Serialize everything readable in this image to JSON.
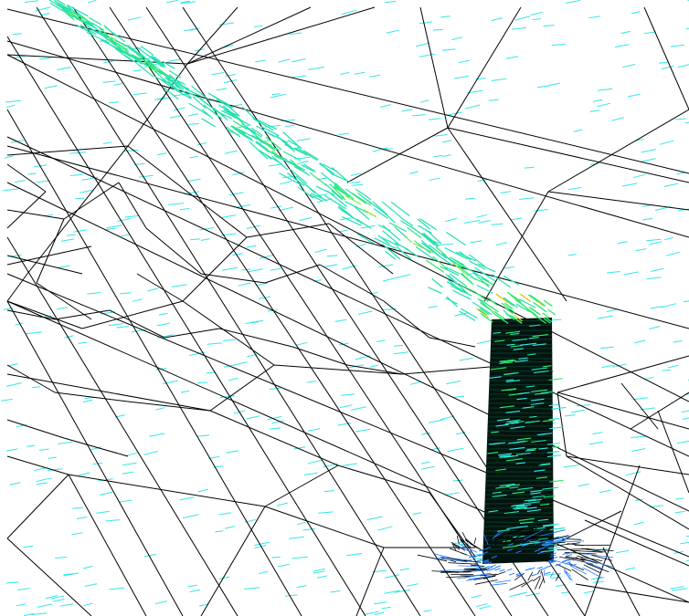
{
  "scene": {
    "background": "#ffffff",
    "mesh_color": "#000000",
    "vector_colors": {
      "low": "#33e6e6",
      "low_mid": "#22e0b0",
      "mid": "#2fe86a",
      "high": "#7cf020",
      "peak": "#e8c020",
      "base_ring": "#2a7cff"
    },
    "object": "chimney-stack",
    "plume": "plume-velocity-vectors"
  }
}
